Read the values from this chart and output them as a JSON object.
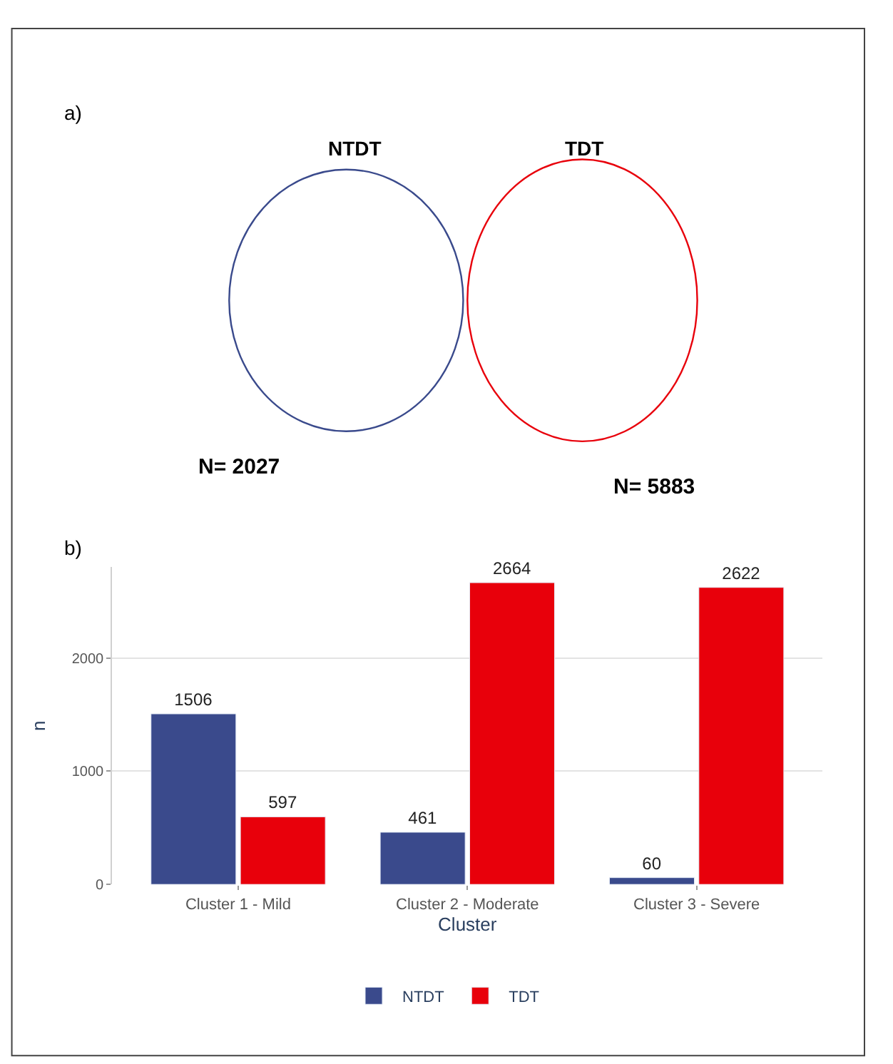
{
  "chart_data": [
    {
      "type": "other",
      "title": "a)",
      "annotations": [
        "NTDT",
        "TDT",
        "N= 2027",
        "N= 5883"
      ]
    },
    {
      "type": "bar",
      "title": "b)",
      "categories": [
        "Cluster 1 - Mild",
        "Cluster 2 - Moderate",
        "Cluster 3 - Severe"
      ],
      "xlabel": "Cluster",
      "ylabel": "n",
      "series": [
        {
          "name": "NTDT",
          "color": "#3a4a8c",
          "values": [
            1506,
            461,
            60
          ]
        },
        {
          "name": "TDT",
          "color": "#e8000b",
          "values": [
            597,
            2664,
            2622
          ]
        }
      ],
      "ylim": [
        0,
        2800
      ],
      "yticks": [
        0,
        1000,
        2000
      ],
      "grid": "y",
      "legend": "bottom",
      "data_labels": true
    }
  ]
}
